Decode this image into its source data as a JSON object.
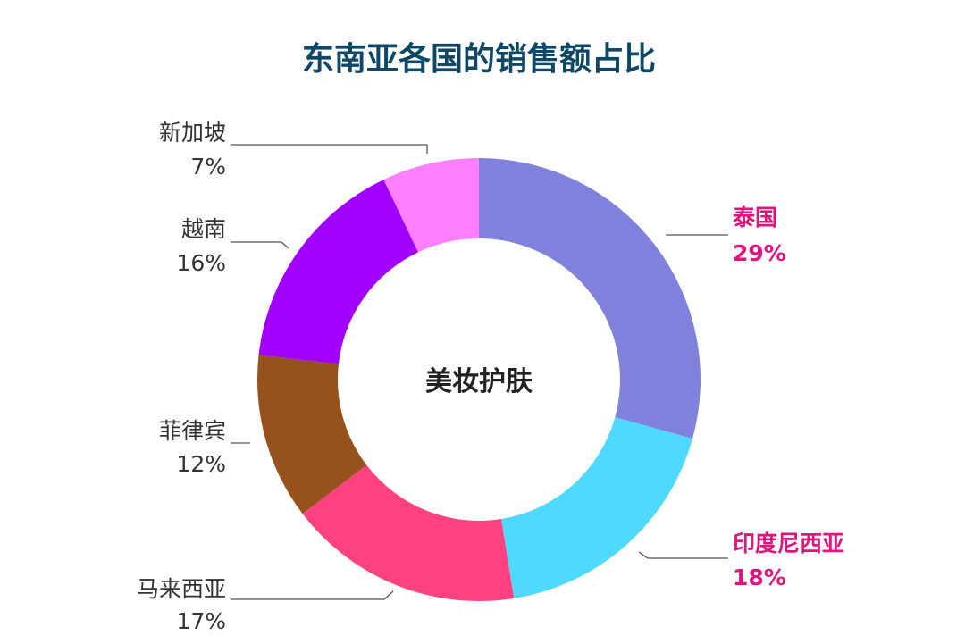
{
  "chart_data": {
    "type": "pie",
    "title": "东南亚各国的销售额占比",
    "center_label": "美妆护肤",
    "categories": [
      "泰国",
      "印度尼西亚",
      "马来西亚",
      "菲律宾",
      "越南",
      "新加坡"
    ],
    "values": [
      29,
      18,
      17,
      12,
      16,
      7
    ],
    "value_labels": [
      "29%",
      "18%",
      "17%",
      "12%",
      "16%",
      "7%"
    ],
    "colors": [
      "#8080DD",
      "#50D9FF",
      "#FF4180",
      "#95521C",
      "#A200FF",
      "#FF80FF"
    ],
    "label_colors": [
      "#E0147C",
      "#E0147C",
      "#333333",
      "#333333",
      "#333333",
      "#333333"
    ],
    "title_color": "#0E4866",
    "donut": true
  }
}
